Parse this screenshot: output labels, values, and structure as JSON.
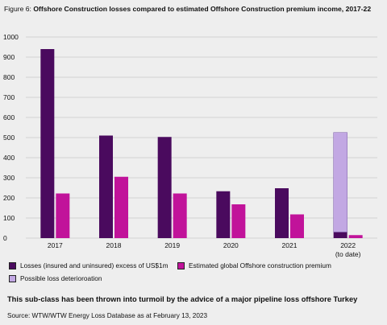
{
  "figure": {
    "label": "Figure 6: ",
    "title": "Offshore Construction losses compared to estimated Offshore Construction premium income, 2017-22"
  },
  "colors": {
    "losses": "#4a0a5e",
    "premium": "#c1139a",
    "deterioration": "#c2a8e3",
    "grid": "#c8c8c8",
    "background": "#eeeeee"
  },
  "chart_data": {
    "type": "bar",
    "title": "",
    "xlabel": "",
    "ylabel": "",
    "categories": [
      "2017",
      "2018",
      "2019",
      "2020",
      "2021",
      "2022"
    ],
    "category_sublabels": [
      "",
      "",
      "",
      "",
      "",
      "(to date)"
    ],
    "ylim": [
      0,
      1000
    ],
    "yticks": [
      0,
      100,
      200,
      300,
      400,
      500,
      600,
      700,
      800,
      900,
      1000
    ],
    "grid": true,
    "series": [
      {
        "name": "Losses (insured and uninsured) excess of US$1m",
        "values": [
          940,
          510,
          503,
          233,
          248,
          30
        ]
      },
      {
        "name": "Estimated global Offshore construction premium",
        "values": [
          222,
          305,
          222,
          168,
          118,
          15
        ]
      },
      {
        "name": "Possible loss deterioroation",
        "values": [
          0,
          0,
          0,
          0,
          0,
          495
        ],
        "stacked_on": "Losses (insured and uninsured) excess of US$1m"
      }
    ]
  },
  "caption": "This sub-class has been thrown into turmoil by the advice of a major pipeline loss offshore Turkey",
  "source": "Source: WTW/WTW Energy Loss Database as at February 13, 2023"
}
